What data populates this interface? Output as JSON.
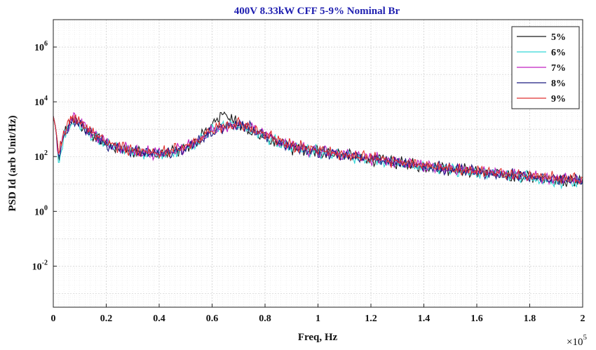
{
  "chart_data": {
    "type": "line",
    "title": "400V 8.33kW CFF 5-9% Nominal Br",
    "xlabel": "Freq, Hz",
    "ylabel": "PSD Id (arb Unit/Hz)",
    "x_multiplier_label": "×10",
    "x_multiplier_exp": "5",
    "xlim": [
      0,
      2
    ],
    "ylim_log10": [
      -3.5,
      7
    ],
    "y_scale": "log",
    "grid": true,
    "legend_position": "top-right",
    "x_ticks": [
      {
        "value": 0,
        "label": "0"
      },
      {
        "value": 0.2,
        "label": "0.2"
      },
      {
        "value": 0.4,
        "label": "0.4"
      },
      {
        "value": 0.6,
        "label": "0.6"
      },
      {
        "value": 0.8,
        "label": "0.8"
      },
      {
        "value": 1,
        "label": "1"
      },
      {
        "value": 1.2,
        "label": "1.2"
      },
      {
        "value": 1.4,
        "label": "1.4"
      },
      {
        "value": 1.6,
        "label": "1.6"
      },
      {
        "value": 1.8,
        "label": "1.8"
      },
      {
        "value": 2,
        "label": "2"
      }
    ],
    "y_ticks": [
      {
        "exp": -2,
        "base": "10",
        "sup": "-2"
      },
      {
        "exp": 0,
        "base": "10",
        "sup": "0"
      },
      {
        "exp": 2,
        "base": "10",
        "sup": "2"
      },
      {
        "exp": 4,
        "base": "10",
        "sup": "4"
      },
      {
        "exp": 6,
        "base": "10",
        "sup": "6"
      }
    ],
    "x": [
      0.0,
      0.01,
      0.02,
      0.04,
      0.06,
      0.08,
      0.1,
      0.12,
      0.15,
      0.2,
      0.25,
      0.3,
      0.35,
      0.4,
      0.45,
      0.5,
      0.55,
      0.6,
      0.62,
      0.65,
      0.68,
      0.7,
      0.75,
      0.8,
      0.85,
      0.9,
      1.0,
      1.1,
      1.2,
      1.3,
      1.4,
      1.5,
      1.6,
      1.7,
      1.8,
      1.9,
      2.0
    ],
    "series": [
      {
        "name": "5%",
        "color": "#1a1a1a",
        "values": [
          3000,
          1000,
          80,
          600,
          1500,
          2200,
          1500,
          1000,
          600,
          300,
          200,
          150,
          130,
          120,
          150,
          200,
          400,
          1500,
          3000,
          3500,
          2000,
          1500,
          800,
          500,
          300,
          200,
          150,
          110,
          80,
          60,
          45,
          35,
          28,
          22,
          18,
          14,
          12
        ]
      },
      {
        "name": "6%",
        "color": "#33d6d6",
        "values": [
          3000,
          1000,
          60,
          500,
          1200,
          1800,
          1300,
          900,
          550,
          280,
          190,
          140,
          125,
          115,
          140,
          190,
          350,
          900,
          1200,
          1400,
          1500,
          1300,
          900,
          550,
          320,
          210,
          150,
          105,
          75,
          58,
          42,
          33,
          26,
          21,
          17,
          13,
          11
        ]
      },
      {
        "name": "7%",
        "color": "#c020c0",
        "values": [
          3000,
          1000,
          90,
          700,
          1700,
          2500,
          1800,
          1200,
          700,
          320,
          220,
          160,
          140,
          130,
          160,
          220,
          400,
          900,
          1100,
          1300,
          1500,
          1600,
          1100,
          650,
          380,
          240,
          160,
          115,
          85,
          62,
          46,
          36,
          29,
          23,
          19,
          15,
          13
        ]
      },
      {
        "name": "8%",
        "color": "#1a1a80",
        "values": [
          3000,
          1000,
          70,
          550,
          1400,
          2000,
          1500,
          1000,
          600,
          290,
          200,
          150,
          130,
          120,
          150,
          200,
          380,
          800,
          1000,
          1200,
          1400,
          1500,
          1050,
          620,
          360,
          230,
          155,
          112,
          82,
          60,
          44,
          35,
          28,
          22,
          18,
          15,
          13
        ]
      },
      {
        "name": "9%",
        "color": "#e03030",
        "values": [
          3000,
          1000,
          100,
          800,
          1900,
          2800,
          2000,
          1300,
          750,
          340,
          230,
          170,
          145,
          135,
          165,
          230,
          420,
          1000,
          1200,
          1400,
          1600,
          1700,
          1150,
          680,
          400,
          250,
          165,
          118,
          88,
          65,
          48,
          38,
          30,
          24,
          20,
          16,
          14
        ]
      }
    ]
  }
}
